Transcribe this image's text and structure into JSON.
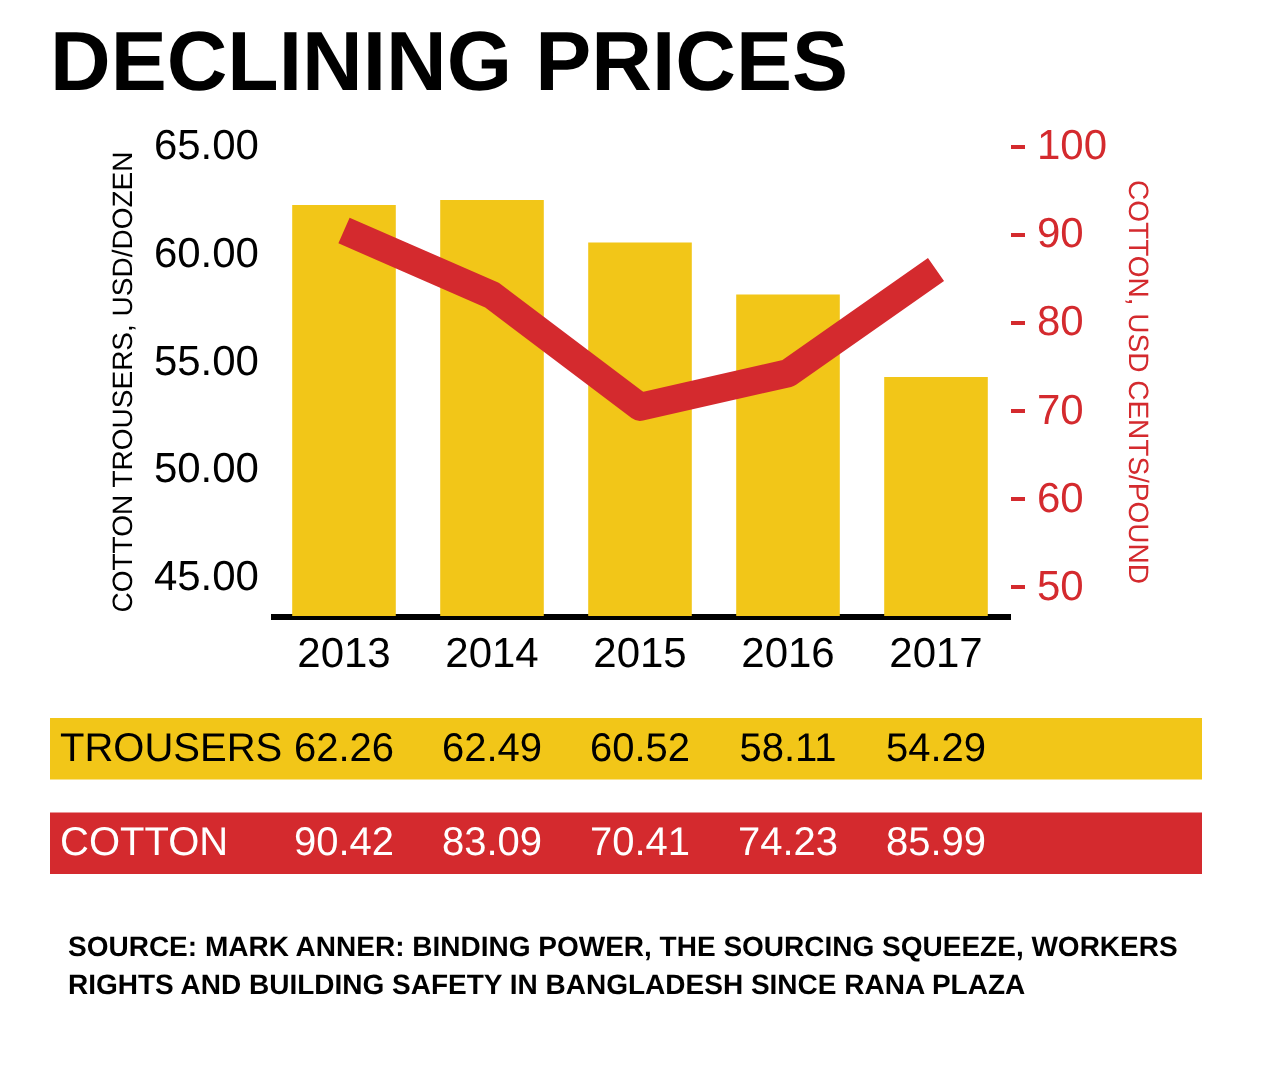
{
  "chart_data": {
    "type": "bar",
    "title": "DECLINING PRICES",
    "ylabel": "COTTON TROUSERS, USD/DOZEN",
    "y2label": "COTTON, USD CENTS/POUND",
    "categories": [
      "2013",
      "2014",
      "2015",
      "2016",
      "2017"
    ],
    "series": [
      {
        "name": "TROUSERS",
        "color": "#f2c618",
        "values": [
          62.26,
          62.49,
          60.52,
          58.11,
          54.29
        ]
      },
      {
        "name": "COTTON",
        "type": "line",
        "axis": "y2",
        "color": "#d42a2e",
        "values": [
          90.42,
          83.09,
          70.41,
          74.23,
          85.99
        ]
      }
    ],
    "ylim": [
      43.2,
      65
    ],
    "yticks": [
      {
        "value": 45,
        "label": "45.00"
      },
      {
        "value": 50,
        "label": "50.00"
      },
      {
        "value": 55,
        "label": "55.00"
      },
      {
        "value": 60,
        "label": "60.00"
      },
      {
        "value": 65,
        "label": "65.00"
      }
    ],
    "y2lim": [
      46.7,
      100
    ],
    "y2ticks": [
      50,
      60,
      70,
      80,
      90,
      100
    ],
    "data_labels": true,
    "annotations": [
      "SOURCE: MARK ANNER: BINDING POWER, THE SOURCING SQUEEZE, WORKERS RIGHTS AND BUILDING SAFETY IN BANGLADESH SINCE RANA PLAZA"
    ]
  }
}
